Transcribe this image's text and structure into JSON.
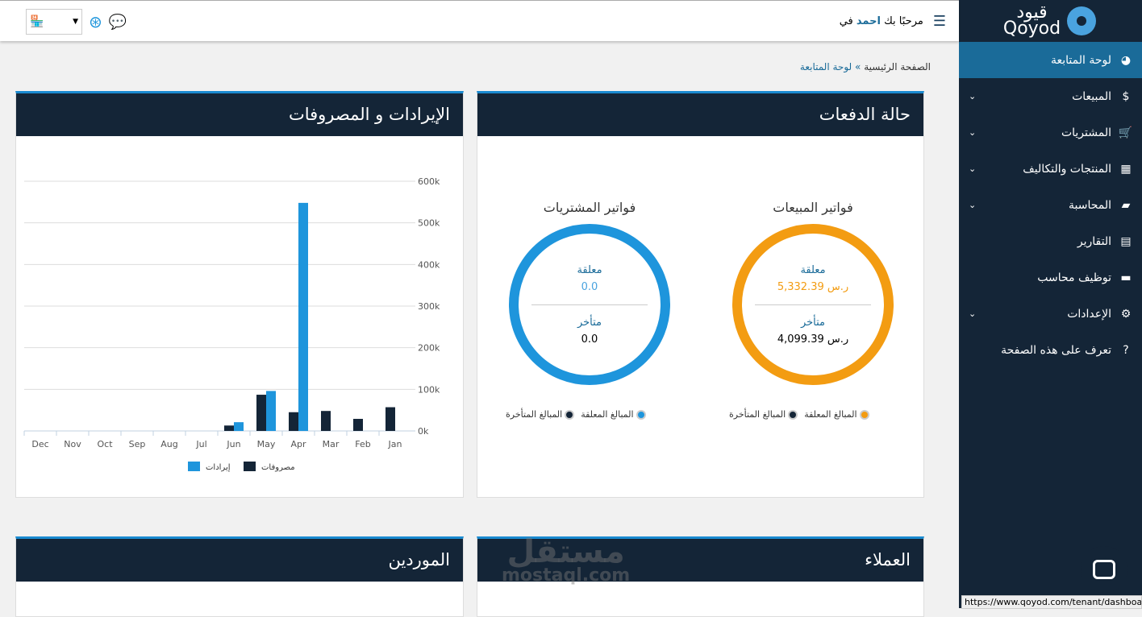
{
  "brand": {
    "logo_text_ar": "قيود",
    "logo_text_en": "Qoyod"
  },
  "sidebar": {
    "items": [
      {
        "label": "لوحة المتابعة",
        "icon": "dashboard-icon",
        "glyph": "◕",
        "active": true,
        "chevron": false
      },
      {
        "label": "المبيعات",
        "icon": "dollar-icon",
        "glyph": "$",
        "chevron": true
      },
      {
        "label": "المشتريات",
        "icon": "cart-icon",
        "glyph": "🛒",
        "chevron": true
      },
      {
        "label": "المنتجات والتكاليف",
        "icon": "grid-icon",
        "glyph": "▦",
        "chevron": true
      },
      {
        "label": "المحاسبة",
        "icon": "folder-icon",
        "glyph": "▰",
        "chevron": true
      },
      {
        "label": "التقارير",
        "icon": "file-icon",
        "glyph": "▤",
        "chevron": false
      },
      {
        "label": "توظيف محاسب",
        "icon": "truck-icon",
        "glyph": "▬",
        "chevron": false
      },
      {
        "label": "الإعدادات",
        "icon": "gear-icon",
        "glyph": "⚙",
        "chevron": true
      },
      {
        "label": "تعرف على هذه الصفحة",
        "icon": "question-icon",
        "glyph": "?",
        "chevron": false
      }
    ]
  },
  "topbar": {
    "welcome": "مرحبًا بك",
    "user": "احمد",
    "in": "في"
  },
  "breadcrumb": {
    "home": "الصفحة الرئيسية",
    "sep": "»",
    "current": "لوحة المتابعة"
  },
  "payments": {
    "title": "حالة الدفعات",
    "sales": {
      "title": "فواتير المبيعات",
      "pending_label": "معلقة",
      "pending": "5,332.39 ر.س",
      "late_label": "متأخر",
      "late": "4,099.39 ر.س",
      "color": "#f39c12"
    },
    "purchases": {
      "title": "فواتير المشتريات",
      "pending_label": "معلقة",
      "pending": "0.0",
      "late_label": "متأخر",
      "late": "0.0",
      "color": "#1e95dc"
    },
    "legend_pending": "المبالغ المعلقة",
    "legend_late": "المبالغ المتأخرة"
  },
  "revexp": {
    "title": "الإيرادات و المصروفات"
  },
  "chart_data": {
    "type": "bar",
    "categories": [
      "Dec",
      "Nov",
      "Oct",
      "Sep",
      "Aug",
      "Jul",
      "Jun",
      "May",
      "Apr",
      "Mar",
      "Feb",
      "Jan"
    ],
    "series": [
      {
        "name": "مصروفات",
        "color": "#142537",
        "values": [
          0,
          0,
          0,
          0,
          0,
          0,
          13000,
          87000,
          45000,
          48000,
          29000,
          57000
        ]
      },
      {
        "name": "إيرادات",
        "color": "#1e95dc",
        "values": [
          0,
          0,
          0,
          0,
          0,
          0,
          21000,
          96000,
          548000,
          0,
          0,
          0
        ]
      }
    ],
    "yticks": [
      "0k",
      "100k",
      "200k",
      "300k",
      "400k",
      "500k",
      "600k"
    ],
    "ylim": [
      0,
      600000
    ],
    "grid": true,
    "legend": "bottom"
  },
  "customers": {
    "title": "العملاء"
  },
  "suppliers": {
    "title": "الموردين"
  },
  "watermark": {
    "ar": "مستقل",
    "en": "mostaql.com"
  },
  "status_url": "https://www.qoyod.com/tenant/dashboard"
}
